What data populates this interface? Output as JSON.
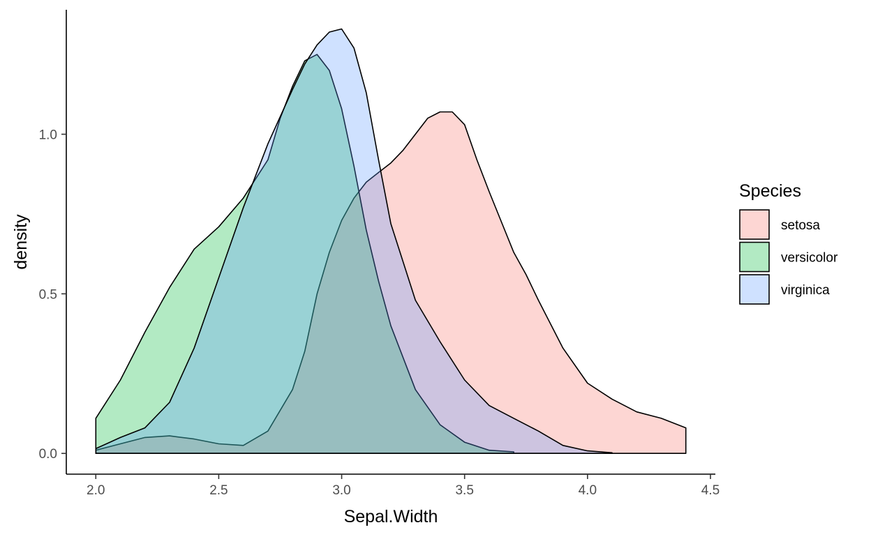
{
  "chart_data": {
    "type": "area",
    "subtype": "density",
    "title": "",
    "xlabel": "Sepal.Width",
    "ylabel": "density",
    "xlim": [
      1.88,
      4.52
    ],
    "ylim": [
      -0.065,
      1.39
    ],
    "x_ticks": [
      2.0,
      2.5,
      3.0,
      3.5,
      4.0,
      4.5
    ],
    "x_tick_labels": [
      "2.0",
      "2.5",
      "3.0",
      "3.5",
      "4.0",
      "4.5"
    ],
    "y_ticks": [
      0.0,
      0.5,
      1.0
    ],
    "y_tick_labels": [
      "0.0",
      "0.5",
      "1.0"
    ],
    "grid": false,
    "legend": {
      "title": "Species",
      "position": "right"
    },
    "fill_opacity": 0.3,
    "series": [
      {
        "name": "setosa",
        "color": "#F8766D",
        "x": [
          2.0,
          2.1,
          2.2,
          2.3,
          2.4,
          2.5,
          2.6,
          2.7,
          2.8,
          2.85,
          2.9,
          2.95,
          3.0,
          3.05,
          3.1,
          3.15,
          3.2,
          3.25,
          3.3,
          3.35,
          3.4,
          3.45,
          3.5,
          3.55,
          3.6,
          3.7,
          3.75,
          3.8,
          3.9,
          4.0,
          4.1,
          4.2,
          4.3,
          4.4
        ],
        "y": [
          0.01,
          0.03,
          0.05,
          0.055,
          0.045,
          0.03,
          0.025,
          0.07,
          0.2,
          0.32,
          0.5,
          0.63,
          0.73,
          0.8,
          0.85,
          0.88,
          0.91,
          0.95,
          1.0,
          1.05,
          1.07,
          1.07,
          1.03,
          0.92,
          0.82,
          0.63,
          0.56,
          0.48,
          0.33,
          0.22,
          0.17,
          0.13,
          0.11,
          0.08
        ]
      },
      {
        "name": "versicolor",
        "color": "#00BA38",
        "x": [
          2.0,
          2.1,
          2.2,
          2.3,
          2.4,
          2.5,
          2.6,
          2.7,
          2.75,
          2.8,
          2.85,
          2.9,
          2.95,
          3.0,
          3.05,
          3.1,
          3.15,
          3.2,
          3.3,
          3.4,
          3.5,
          3.6,
          3.7
        ],
        "y": [
          0.11,
          0.23,
          0.38,
          0.52,
          0.64,
          0.71,
          0.8,
          0.92,
          1.05,
          1.15,
          1.23,
          1.25,
          1.2,
          1.08,
          0.9,
          0.7,
          0.54,
          0.4,
          0.2,
          0.09,
          0.035,
          0.01,
          0.005
        ]
      },
      {
        "name": "virginica",
        "color": "#619CFF",
        "x": [
          2.0,
          2.1,
          2.2,
          2.3,
          2.4,
          2.5,
          2.6,
          2.7,
          2.8,
          2.85,
          2.9,
          2.95,
          3.0,
          3.05,
          3.1,
          3.15,
          3.2,
          3.3,
          3.4,
          3.5,
          3.6,
          3.7,
          3.8,
          3.9,
          4.0,
          4.1
        ],
        "y": [
          0.015,
          0.05,
          0.08,
          0.16,
          0.33,
          0.55,
          0.77,
          0.97,
          1.14,
          1.22,
          1.28,
          1.32,
          1.33,
          1.27,
          1.13,
          0.92,
          0.72,
          0.48,
          0.35,
          0.23,
          0.15,
          0.11,
          0.07,
          0.025,
          0.008,
          0.002
        ]
      }
    ]
  }
}
